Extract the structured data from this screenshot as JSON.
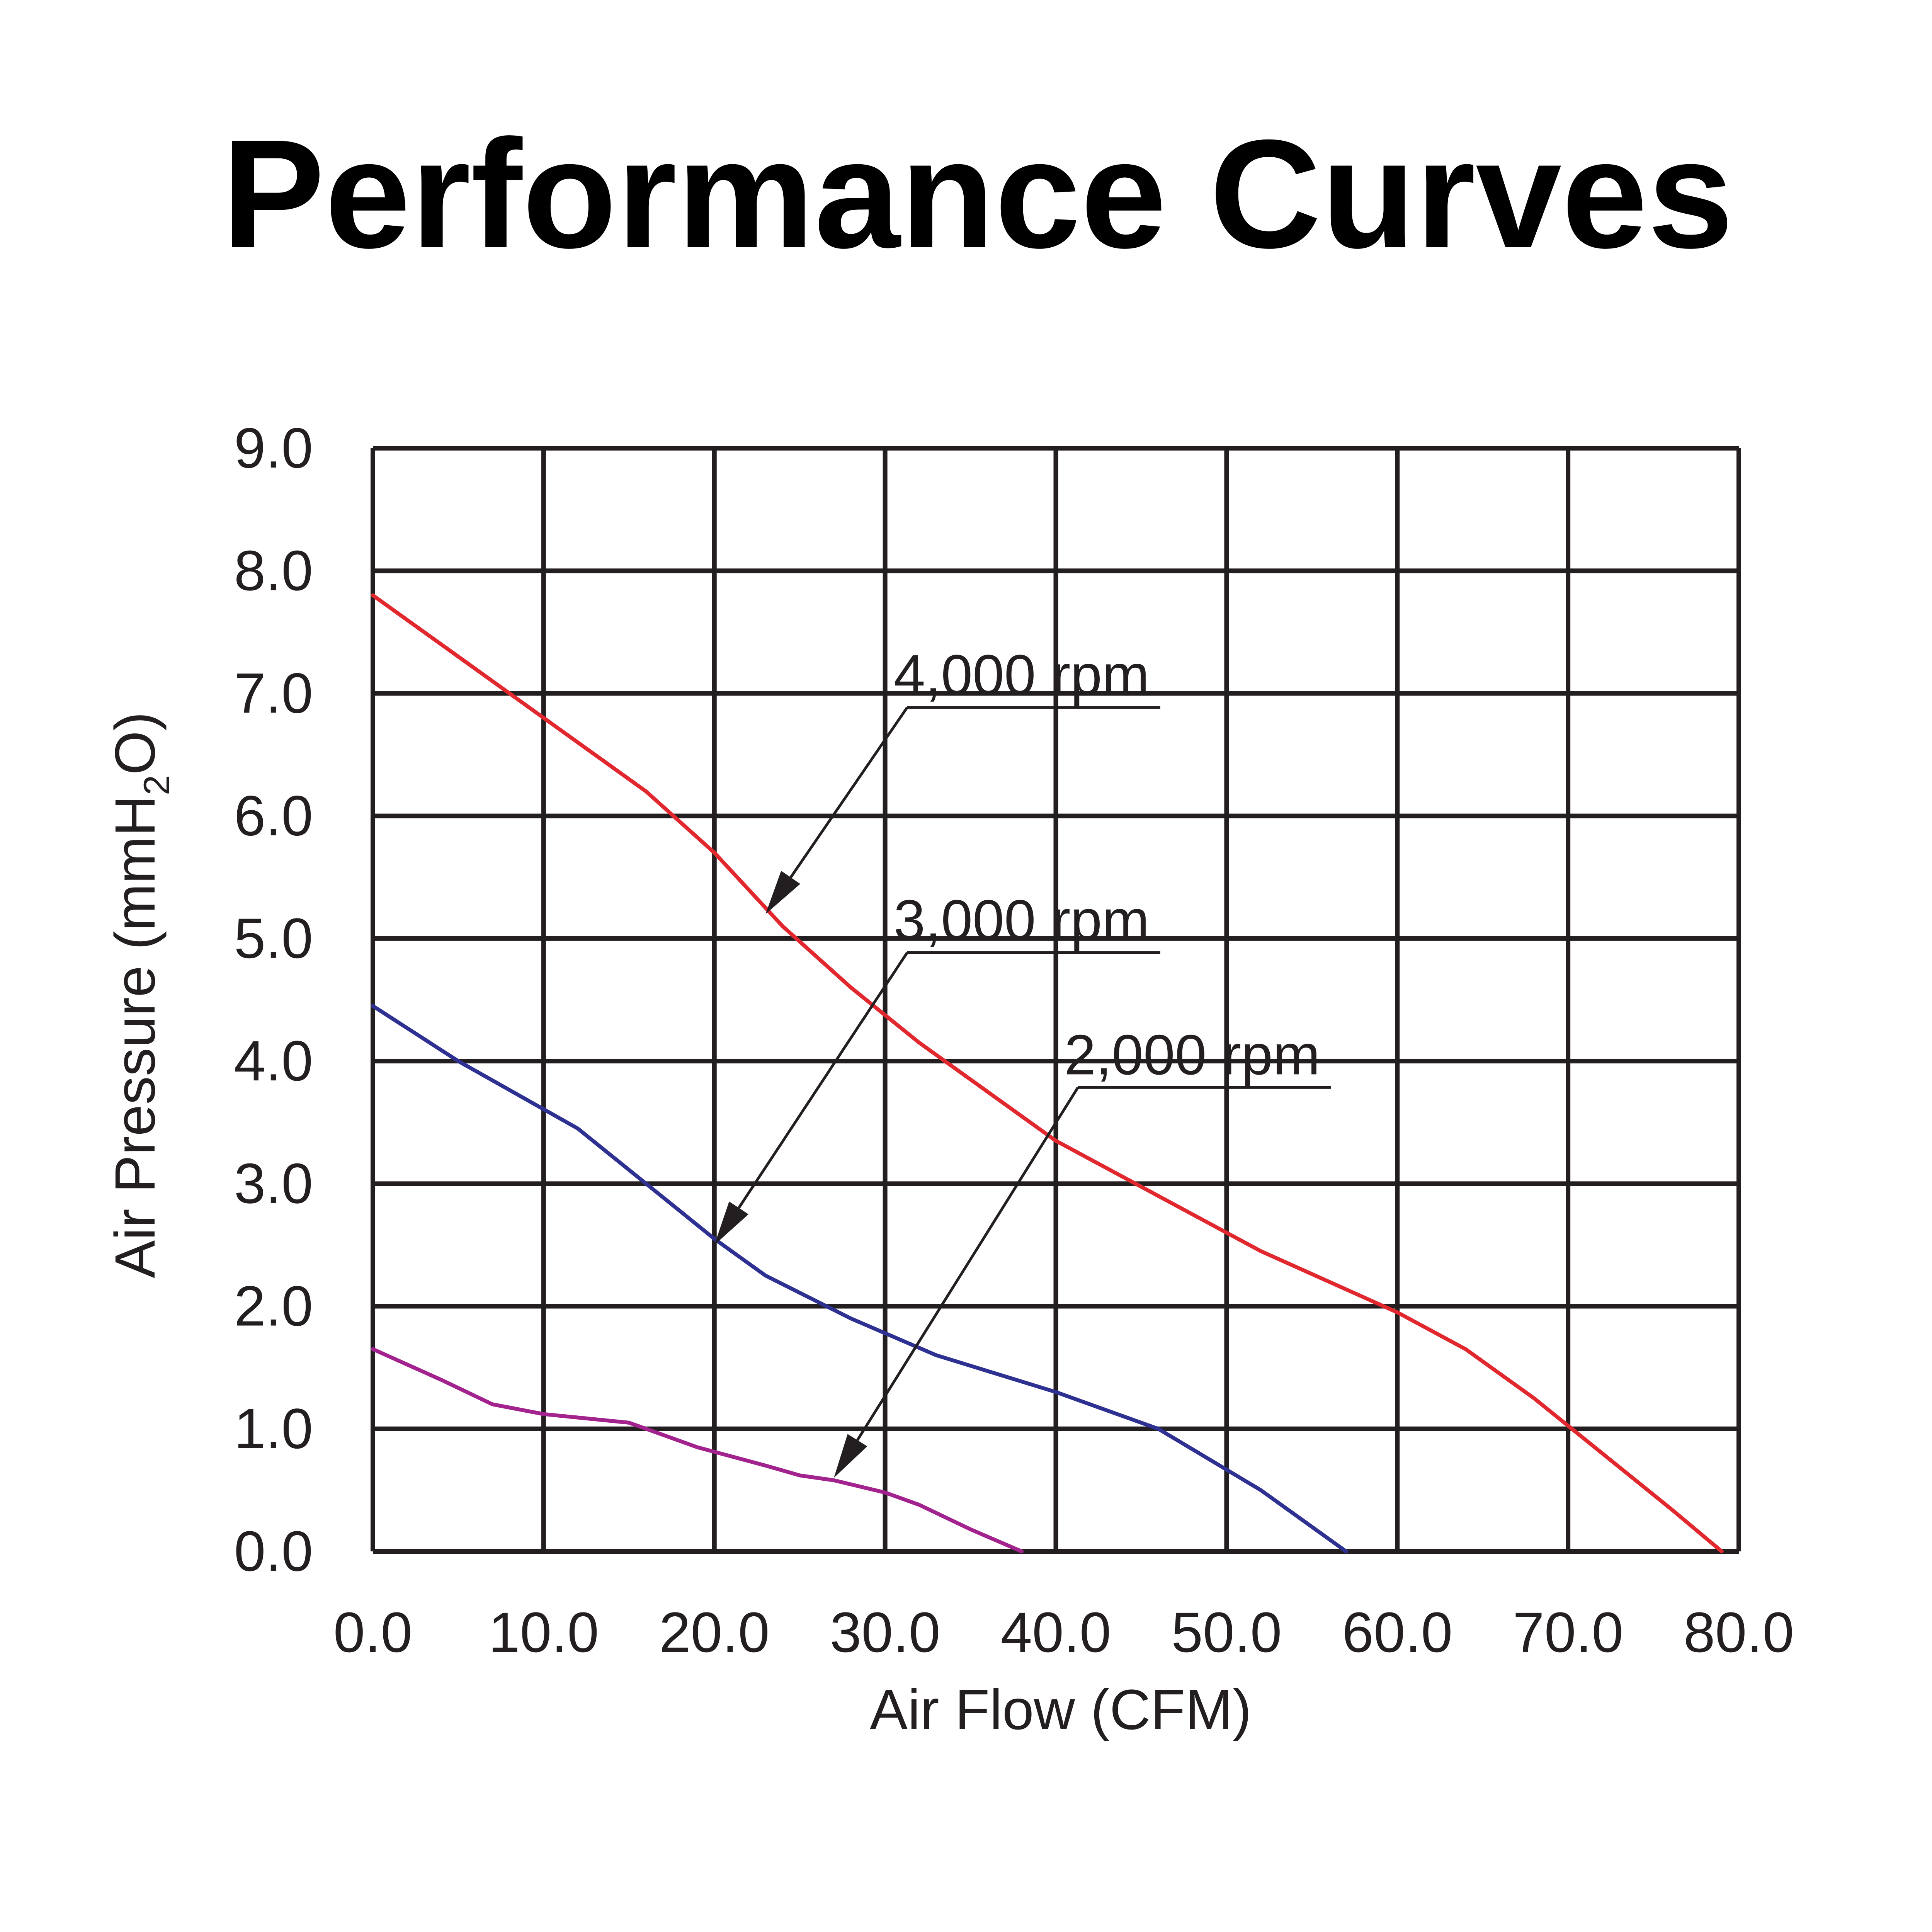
{
  "chart_data": {
    "type": "line",
    "title": "Performance Curves",
    "xlabel": "Air Flow (CFM)",
    "ylabel": {
      "before": "Air Pressure (mmH",
      "sub": "2",
      "after": "O)"
    },
    "xlim": [
      0,
      80
    ],
    "ylim": [
      0,
      9
    ],
    "xticks": [
      {
        "value": 0,
        "label": "0.0"
      },
      {
        "value": 10,
        "label": "10.0"
      },
      {
        "value": 20,
        "label": "20.0"
      },
      {
        "value": 30,
        "label": "30.0"
      },
      {
        "value": 40,
        "label": "40.0"
      },
      {
        "value": 50,
        "label": "50.0"
      },
      {
        "value": 60,
        "label": "60.0"
      },
      {
        "value": 70,
        "label": "70.0"
      },
      {
        "value": 80,
        "label": "80.0"
      }
    ],
    "yticks": [
      {
        "value": 0,
        "label": "0.0"
      },
      {
        "value": 1,
        "label": "1.0"
      },
      {
        "value": 2,
        "label": "2.0"
      },
      {
        "value": 3,
        "label": "3.0"
      },
      {
        "value": 4,
        "label": "4.0"
      },
      {
        "value": 5,
        "label": "5.0"
      },
      {
        "value": 6,
        "label": "6.0"
      },
      {
        "value": 7,
        "label": "7.0"
      },
      {
        "value": 8,
        "label": "8.0"
      },
      {
        "value": 9,
        "label": "9.0"
      }
    ],
    "grid": true,
    "series": [
      {
        "name": "4,000 rpm",
        "color": "#e0282e",
        "x": [
          0,
          8,
          16,
          20,
          24,
          28,
          32,
          36,
          40,
          44,
          48,
          52,
          56,
          60,
          64,
          68,
          72,
          76,
          79
        ],
        "y": [
          7.8,
          7.0,
          6.2,
          5.7,
          5.1,
          4.6,
          4.15,
          3.75,
          3.35,
          3.05,
          2.75,
          2.45,
          2.2,
          1.95,
          1.65,
          1.25,
          0.8,
          0.35,
          0.0
        ]
      },
      {
        "name": "3,000 rpm",
        "color": "#2e3192",
        "x": [
          0,
          5,
          12,
          20,
          23,
          28,
          33,
          40,
          46,
          52,
          57
        ],
        "y": [
          4.45,
          4.0,
          3.45,
          2.55,
          2.25,
          1.9,
          1.6,
          1.3,
          1.0,
          0.5,
          0.0
        ]
      },
      {
        "name": "2,000 rpm",
        "color": "#a3238e",
        "x": [
          0,
          4,
          7,
          10,
          15,
          19,
          23,
          25,
          27,
          30,
          32,
          35,
          38
        ],
        "y": [
          1.65,
          1.4,
          1.2,
          1.12,
          1.05,
          0.85,
          0.7,
          0.62,
          0.58,
          0.48,
          0.38,
          0.18,
          0.0
        ]
      }
    ],
    "annotations": [
      {
        "text": "4,000 rpm",
        "series": "4,000 rpm",
        "points_to": {
          "x": 23.0,
          "y": 5.2
        },
        "label_at": {
          "x": 30.5,
          "y": 7.2
        }
      },
      {
        "text": "3,000 rpm",
        "series": "3,000 rpm",
        "points_to": {
          "x": 20.0,
          "y": 2.5
        },
        "label_at": {
          "x": 30.5,
          "y": 5.2
        }
      },
      {
        "text": "2,000 rpm",
        "series": "2,000 rpm",
        "points_to": {
          "x": 27.0,
          "y": 0.6
        },
        "label_at": {
          "x": 40.5,
          "y": 4.1
        }
      }
    ]
  }
}
